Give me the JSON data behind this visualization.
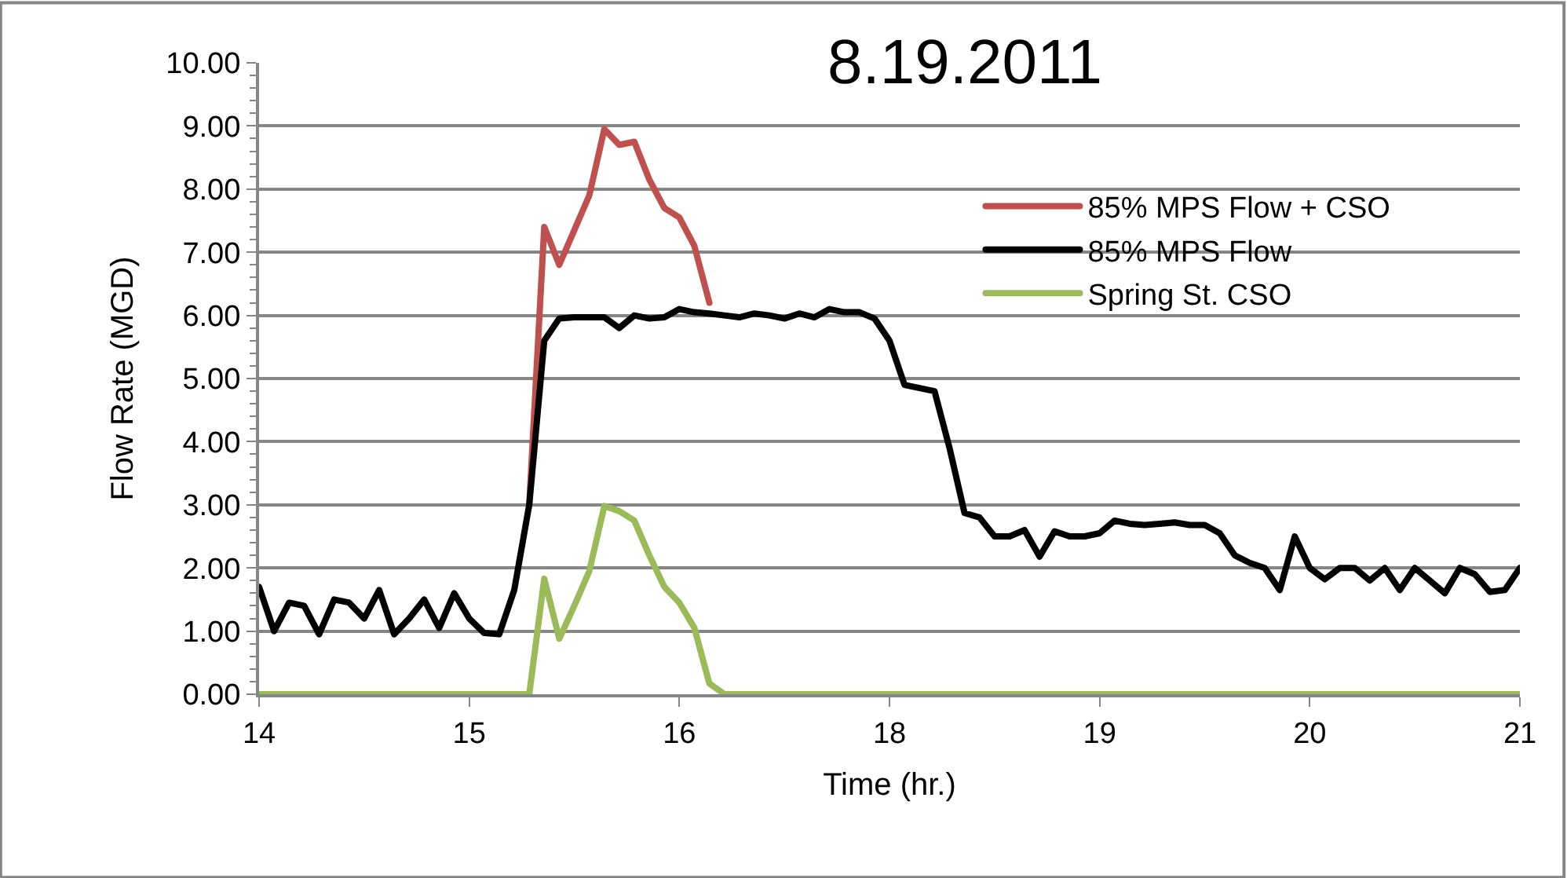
{
  "chart_data": {
    "type": "line",
    "title": "8.19.2011",
    "xlabel": "Time (hr.)",
    "ylabel": "Flow Rate (MGD)",
    "categories": [
      "14",
      null,
      null,
      null,
      null,
      null,
      null,
      null,
      null,
      null,
      null,
      null,
      null,
      null,
      "15",
      null,
      null,
      null,
      null,
      null,
      null,
      null,
      null,
      null,
      null,
      null,
      null,
      null,
      "16",
      null,
      null,
      null,
      null,
      null,
      null,
      null,
      null,
      null,
      null,
      null,
      null,
      null,
      "18",
      null,
      null,
      null,
      null,
      null,
      null,
      null,
      null,
      null,
      null,
      null,
      null,
      null,
      "19",
      null,
      null,
      null,
      null,
      null,
      null,
      null,
      null,
      null,
      null,
      null,
      null,
      null,
      "20",
      null,
      null,
      null,
      null,
      null,
      null,
      null,
      null,
      null,
      null,
      null,
      null,
      null,
      "21"
    ],
    "ylim": [
      0,
      10
    ],
    "yticks": [
      {
        "value": 0,
        "label": "0.00"
      },
      {
        "value": 1,
        "label": "1.00"
      },
      {
        "value": 2,
        "label": "2.00"
      },
      {
        "value": 3,
        "label": "3.00"
      },
      {
        "value": 4,
        "label": "4.00"
      },
      {
        "value": 5,
        "label": "5.00"
      },
      {
        "value": 6,
        "label": "6.00"
      },
      {
        "value": 7,
        "label": "7.00"
      },
      {
        "value": 8,
        "label": "8.00"
      },
      {
        "value": 9,
        "label": "9.00"
      },
      {
        "value": 10,
        "label": "10.00"
      }
    ],
    "grid": "y",
    "legend": "top right",
    "marker": "none",
    "line_style": "solid",
    "series": [
      {
        "name": "85% MPS Flow + CSO",
        "color": "#c0504d",
        "values": [
          null,
          null,
          null,
          null,
          null,
          null,
          null,
          null,
          null,
          null,
          null,
          null,
          null,
          null,
          null,
          null,
          null,
          null,
          3.0,
          7.4,
          6.8,
          7.35,
          7.9,
          8.95,
          8.7,
          8.75,
          8.15,
          7.7,
          7.55,
          7.1,
          6.2,
          null,
          null,
          null,
          null,
          null,
          null,
          null,
          null,
          null,
          null,
          null,
          null,
          null,
          null,
          null,
          null,
          null,
          null,
          null,
          null,
          null,
          null,
          null,
          null,
          null,
          null,
          null,
          null,
          null,
          null,
          null,
          null,
          null,
          null,
          null,
          null,
          null,
          null,
          null,
          null,
          null,
          null,
          null,
          null,
          null,
          null,
          null,
          null,
          null,
          null,
          null,
          null,
          null,
          null
        ]
      },
      {
        "name": "85% MPS Flow",
        "color": "#000000",
        "values": [
          1.7,
          1.0,
          1.45,
          1.4,
          0.95,
          1.5,
          1.45,
          1.2,
          1.65,
          0.95,
          1.2,
          1.5,
          1.05,
          1.6,
          1.2,
          0.97,
          0.95,
          1.65,
          3.0,
          5.6,
          5.95,
          5.97,
          5.97,
          5.97,
          5.8,
          6.0,
          5.95,
          5.97,
          6.1,
          6.05,
          6.03,
          6.0,
          5.97,
          6.03,
          6.0,
          5.95,
          6.03,
          5.97,
          6.1,
          6.05,
          6.05,
          5.95,
          5.6,
          4.9,
          4.85,
          4.8,
          3.9,
          2.87,
          2.8,
          2.5,
          2.5,
          2.6,
          2.18,
          2.58,
          2.5,
          2.5,
          2.55,
          2.75,
          2.7,
          2.68,
          2.7,
          2.72,
          2.68,
          2.68,
          2.55,
          2.2,
          2.08,
          2.0,
          1.65,
          2.5,
          2.0,
          1.82,
          2.0,
          2.0,
          1.8,
          2.0,
          1.65,
          2.0,
          1.8,
          1.6,
          2.0,
          1.9,
          1.62,
          1.65,
          2.0
        ]
      },
      {
        "name": "Spring St. CSO",
        "color": "#9bbb59",
        "values": [
          0,
          0,
          0,
          0,
          0,
          0,
          0,
          0,
          0,
          0,
          0,
          0,
          0,
          0,
          0,
          0,
          0,
          0,
          0,
          1.83,
          0.88,
          1.4,
          1.95,
          2.98,
          2.9,
          2.75,
          2.2,
          1.7,
          1.45,
          1.05,
          0.17,
          0,
          0,
          0,
          0,
          0,
          0,
          0,
          0,
          0,
          0,
          0,
          0,
          0,
          0,
          0,
          0,
          0,
          0,
          0,
          0,
          0,
          0,
          0,
          0,
          0,
          0,
          0,
          0,
          0,
          0,
          0,
          0,
          0,
          0,
          0,
          0,
          0,
          0,
          0,
          0,
          0,
          0,
          0,
          0,
          0,
          0,
          0,
          0,
          0,
          0,
          0,
          0,
          0,
          0
        ]
      }
    ]
  }
}
